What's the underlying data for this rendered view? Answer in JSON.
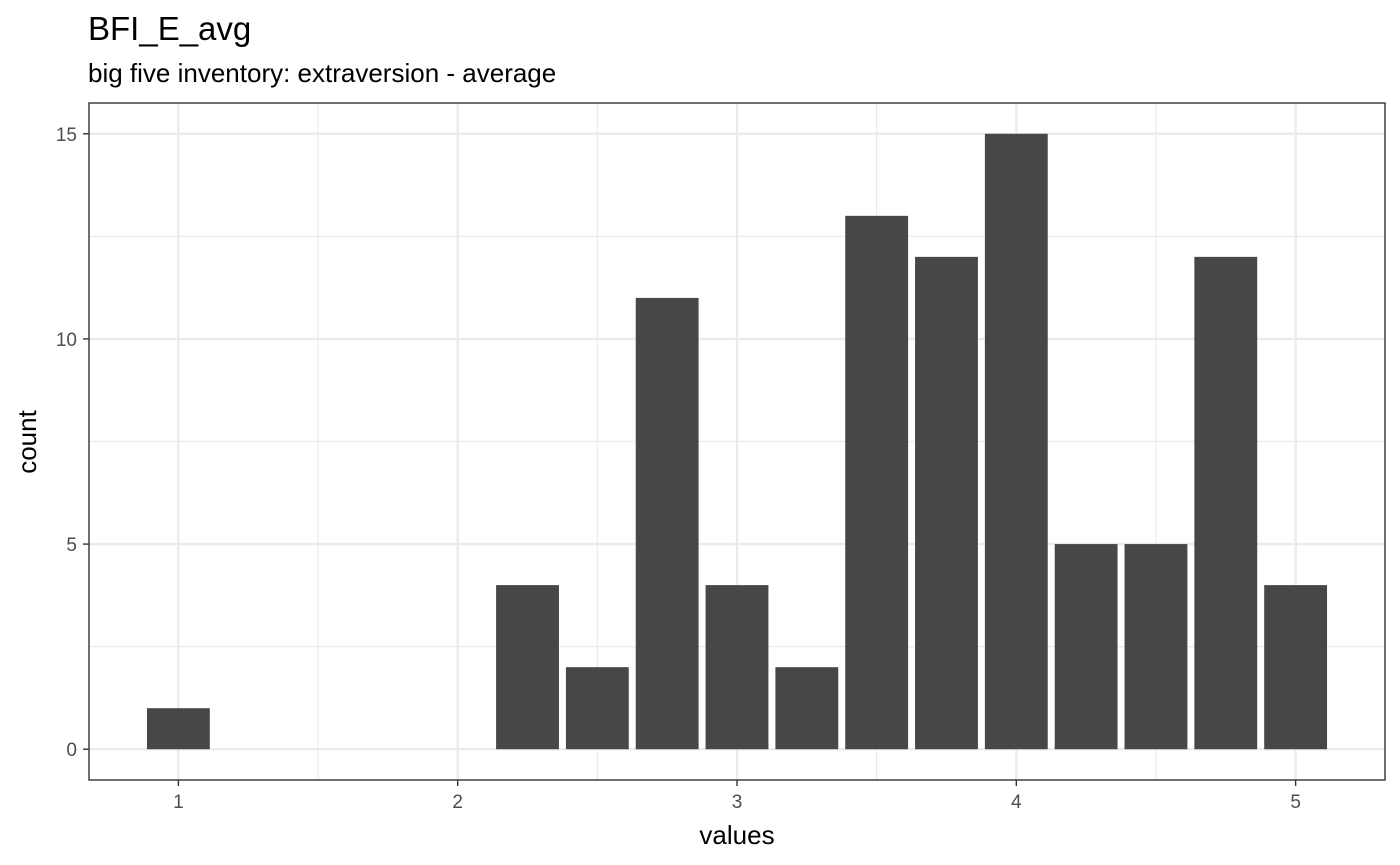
{
  "chart_data": {
    "type": "bar",
    "title": "BFI_E_avg",
    "subtitle": "big five inventory: extraversion - average",
    "xlabel": "values",
    "ylabel": "count",
    "x": [
      1.0,
      2.25,
      2.5,
      2.75,
      3.0,
      3.25,
      3.5,
      3.75,
      4.0,
      4.25,
      4.5,
      4.75,
      5.0
    ],
    "values": [
      1,
      4,
      2,
      11,
      4,
      2,
      13,
      12,
      15,
      5,
      5,
      12,
      4
    ],
    "bar_width": 0.225,
    "xlim": [
      0.68,
      5.32
    ],
    "ylim": [
      -0.75,
      15.75
    ],
    "x_ticks": [
      1,
      2,
      3,
      4,
      5
    ],
    "x_tick_labels": [
      "1",
      "2",
      "3",
      "4",
      "5"
    ],
    "y_ticks": [
      0,
      5,
      10,
      15
    ],
    "y_tick_labels": [
      "0",
      "5",
      "10",
      "15"
    ],
    "grid": true,
    "bar_color": "#474747",
    "grid_color": "#ebebeb",
    "panel_border_color": "#333333"
  }
}
